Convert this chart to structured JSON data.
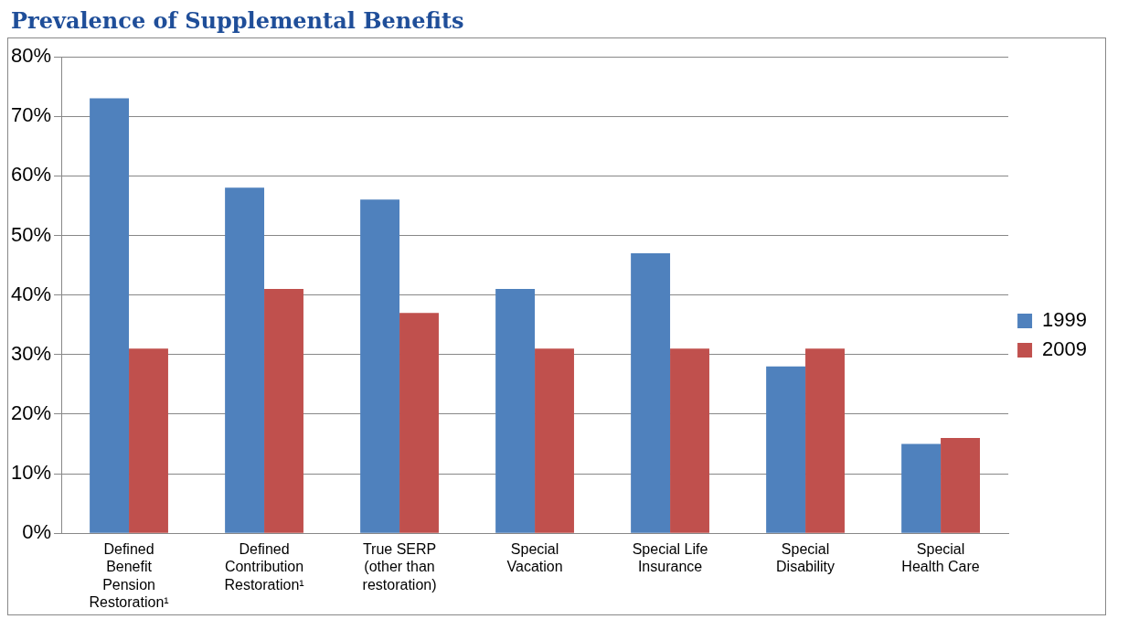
{
  "chart_data": {
    "type": "bar",
    "title": "Prevalence of Supplemental Benefits",
    "categories": [
      "Defined Benefit Pension Restoration¹",
      "Defined Contribution Restoration¹",
      "True SERP (other than restoration)",
      "Special Vacation",
      "Special Life Insurance",
      "Special Disability",
      "Special Health Care"
    ],
    "series": [
      {
        "name": "1999",
        "color": "#4f81bd",
        "values": [
          73,
          58,
          56,
          41,
          47,
          28,
          15
        ]
      },
      {
        "name": "2009",
        "color": "#c0504d",
        "values": [
          31,
          41,
          37,
          31,
          31,
          31,
          16
        ]
      }
    ],
    "ylim": [
      0,
      80
    ],
    "yticks": [
      {
        "value": 0,
        "label": "0%"
      },
      {
        "value": 10,
        "label": "10%"
      },
      {
        "value": 20,
        "label": "20%"
      },
      {
        "value": 30,
        "label": "30%"
      },
      {
        "value": 40,
        "label": "40%"
      },
      {
        "value": 50,
        "label": "50%"
      },
      {
        "value": 60,
        "label": "60%"
      },
      {
        "value": 70,
        "label": "70%"
      },
      {
        "value": 80,
        "label": "80%"
      }
    ],
    "grid": "y",
    "legend": "right"
  }
}
